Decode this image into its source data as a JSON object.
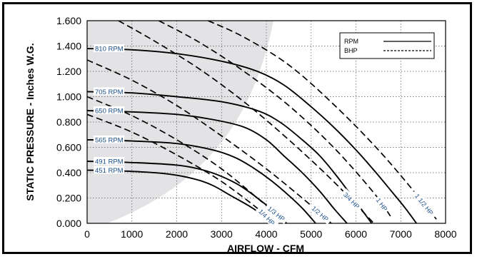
{
  "chart_data": {
    "type": "line",
    "title": "",
    "xlabel": "AIRFLOW - CFM",
    "ylabel": "STATIC PRESSURE - Inches W.G.",
    "xlim": [
      0,
      8000
    ],
    "ylim": [
      0,
      1.6
    ],
    "x_ticks": [
      "0",
      "1000",
      "2000",
      "3000",
      "4000",
      "5000",
      "6000",
      "7000",
      "8000"
    ],
    "y_ticks": [
      "0.000",
      "0.200",
      "0.400",
      "0.600",
      "0.800",
      "1.000",
      "1.200",
      "1.400",
      "1.600"
    ],
    "grid": true,
    "legend": {
      "placement": "top-right",
      "entries": [
        {
          "label": "RPM",
          "style": "solid"
        },
        {
          "label": "BHP",
          "style": "dashed"
        }
      ]
    },
    "shaded_region": "gray area left of system curve (stall region)",
    "series": [
      {
        "name": "810 RPM",
        "style": "solid",
        "x": [
          0,
          1000,
          2000,
          3000,
          3800,
          4400,
          5000,
          5500,
          6000,
          6400,
          6800,
          7100,
          7350
        ],
        "y": [
          1.38,
          1.37,
          1.34,
          1.28,
          1.2,
          1.09,
          0.92,
          0.76,
          0.58,
          0.42,
          0.25,
          0.12,
          0.0
        ]
      },
      {
        "name": "705 RPM",
        "style": "solid",
        "x": [
          0,
          1000,
          2000,
          3000,
          3800,
          4300,
          4800,
          5200,
          5600,
          6000,
          6350
        ],
        "y": [
          1.04,
          1.03,
          1.0,
          0.96,
          0.89,
          0.8,
          0.66,
          0.53,
          0.36,
          0.17,
          0.0
        ]
      },
      {
        "name": "650 RPM",
        "style": "solid",
        "x": [
          0,
          1000,
          2000,
          2800,
          3500,
          4000,
          4400,
          4800,
          5200,
          5500,
          5800
        ],
        "y": [
          0.89,
          0.88,
          0.86,
          0.82,
          0.76,
          0.66,
          0.53,
          0.4,
          0.25,
          0.12,
          0.0
        ]
      },
      {
        "name": "565 RPM",
        "style": "solid",
        "x": [
          0,
          1000,
          2000,
          2800,
          3300,
          3700,
          4100,
          4500,
          4800,
          5100
        ],
        "y": [
          0.66,
          0.65,
          0.63,
          0.58,
          0.52,
          0.44,
          0.34,
          0.22,
          0.12,
          0.0
        ]
      },
      {
        "name": "491 RPM",
        "style": "solid",
        "x": [
          0,
          1000,
          2000,
          2600,
          3000,
          3400,
          3800,
          4150,
          4450
        ],
        "y": [
          0.49,
          0.48,
          0.46,
          0.42,
          0.37,
          0.3,
          0.2,
          0.1,
          0.0
        ]
      },
      {
        "name": "451 RPM",
        "style": "solid",
        "x": [
          0,
          1000,
          1800,
          2400,
          2800,
          3200,
          3600,
          3900,
          4150
        ],
        "y": [
          0.42,
          0.41,
          0.39,
          0.35,
          0.3,
          0.22,
          0.14,
          0.07,
          0.0
        ]
      },
      {
        "name": "1/4 HP",
        "style": "dashed",
        "x": [
          0,
          1000,
          2000,
          3000,
          3900,
          4150
        ],
        "y": [
          0.86,
          0.72,
          0.54,
          0.33,
          0.09,
          0.0
        ]
      },
      {
        "name": "1/3 HP",
        "style": "dashed",
        "x": [
          0,
          1000,
          2000,
          3000,
          4000,
          4500
        ],
        "y": [
          1.0,
          0.85,
          0.66,
          0.43,
          0.14,
          0.0
        ]
      },
      {
        "name": "1/2 HP",
        "style": "dashed",
        "x": [
          0,
          1000,
          2000,
          3000,
          4000,
          5000,
          5450
        ],
        "y": [
          1.29,
          1.13,
          0.93,
          0.69,
          0.43,
          0.14,
          0.0
        ]
      },
      {
        "name": "3/4 HP",
        "style": "dashed",
        "x": [
          700,
          1500,
          2500,
          3500,
          4500,
          5500,
          6400
        ],
        "y": [
          1.6,
          1.44,
          1.22,
          0.96,
          0.66,
          0.33,
          0.0
        ]
      },
      {
        "name": "1 HP",
        "style": "dashed",
        "x": [
          1600,
          2500,
          3500,
          4500,
          5500,
          6400,
          6800
        ],
        "y": [
          1.6,
          1.43,
          1.2,
          0.93,
          0.6,
          0.24,
          0.04
        ]
      },
      {
        "name": "1 1/2 HP",
        "style": "dashed",
        "x": [
          2700,
          3500,
          4500,
          5500,
          6500,
          7300,
          7800
        ],
        "y": [
          1.6,
          1.47,
          1.25,
          0.94,
          0.58,
          0.25,
          0.03
        ]
      }
    ]
  }
}
